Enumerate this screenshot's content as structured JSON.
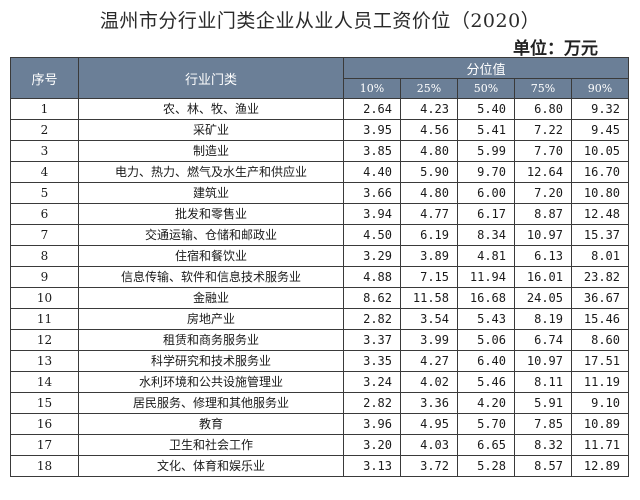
{
  "title": "温州市分行业门类企业从业人员工资价位（2020）",
  "unit": "单位：万元",
  "headers": {
    "seq": "序号",
    "industry": "行业门类",
    "percentile_group": "分位值",
    "percentiles": [
      "10%",
      "25%",
      "50%",
      "75%",
      "90%"
    ]
  },
  "rows": [
    {
      "seq": "1",
      "industry": "农、林、牧、渔业",
      "values": [
        "2.64",
        "4.23",
        "5.40",
        "6.80",
        "9.32"
      ]
    },
    {
      "seq": "2",
      "industry": "采矿业",
      "values": [
        "3.95",
        "4.56",
        "5.41",
        "7.22",
        "9.45"
      ]
    },
    {
      "seq": "3",
      "industry": "制造业",
      "values": [
        "3.85",
        "4.80",
        "5.99",
        "7.70",
        "10.05"
      ]
    },
    {
      "seq": "4",
      "industry": "电力、热力、燃气及水生产和供应业",
      "values": [
        "4.40",
        "5.90",
        "9.70",
        "12.64",
        "16.70"
      ]
    },
    {
      "seq": "5",
      "industry": "建筑业",
      "values": [
        "3.66",
        "4.80",
        "6.00",
        "7.20",
        "10.80"
      ]
    },
    {
      "seq": "6",
      "industry": "批发和零售业",
      "values": [
        "3.94",
        "4.77",
        "6.17",
        "8.87",
        "12.48"
      ]
    },
    {
      "seq": "7",
      "industry": "交通运输、仓储和邮政业",
      "values": [
        "4.50",
        "6.19",
        "8.34",
        "10.97",
        "15.37"
      ]
    },
    {
      "seq": "8",
      "industry": "住宿和餐饮业",
      "values": [
        "3.29",
        "3.89",
        "4.81",
        "6.13",
        "8.01"
      ]
    },
    {
      "seq": "9",
      "industry": "信息传输、软件和信息技术服务业",
      "values": [
        "4.88",
        "7.15",
        "11.94",
        "16.01",
        "23.82"
      ]
    },
    {
      "seq": "10",
      "industry": "金融业",
      "values": [
        "8.62",
        "11.58",
        "16.68",
        "24.05",
        "36.67"
      ]
    },
    {
      "seq": "11",
      "industry": "房地产业",
      "values": [
        "2.82",
        "3.54",
        "5.43",
        "8.19",
        "15.46"
      ]
    },
    {
      "seq": "12",
      "industry": "租赁和商务服务业",
      "values": [
        "3.37",
        "3.99",
        "5.06",
        "6.74",
        "8.60"
      ]
    },
    {
      "seq": "13",
      "industry": "科学研究和技术服务业",
      "values": [
        "3.35",
        "4.27",
        "6.40",
        "10.97",
        "17.51"
      ]
    },
    {
      "seq": "14",
      "industry": "水利环境和公共设施管理业",
      "values": [
        "3.24",
        "4.02",
        "5.46",
        "8.11",
        "11.19"
      ]
    },
    {
      "seq": "15",
      "industry": "居民服务、修理和其他服务业",
      "values": [
        "2.82",
        "3.36",
        "4.20",
        "5.91",
        "9.10"
      ]
    },
    {
      "seq": "16",
      "industry": "教育",
      "values": [
        "3.96",
        "4.95",
        "5.70",
        "7.85",
        "10.89"
      ]
    },
    {
      "seq": "17",
      "industry": "卫生和社会工作",
      "values": [
        "3.20",
        "4.03",
        "6.65",
        "8.32",
        "11.71"
      ]
    },
    {
      "seq": "18",
      "industry": "文化、体育和娱乐业",
      "values": [
        "3.13",
        "3.72",
        "5.28",
        "8.57",
        "12.89"
      ]
    }
  ]
}
